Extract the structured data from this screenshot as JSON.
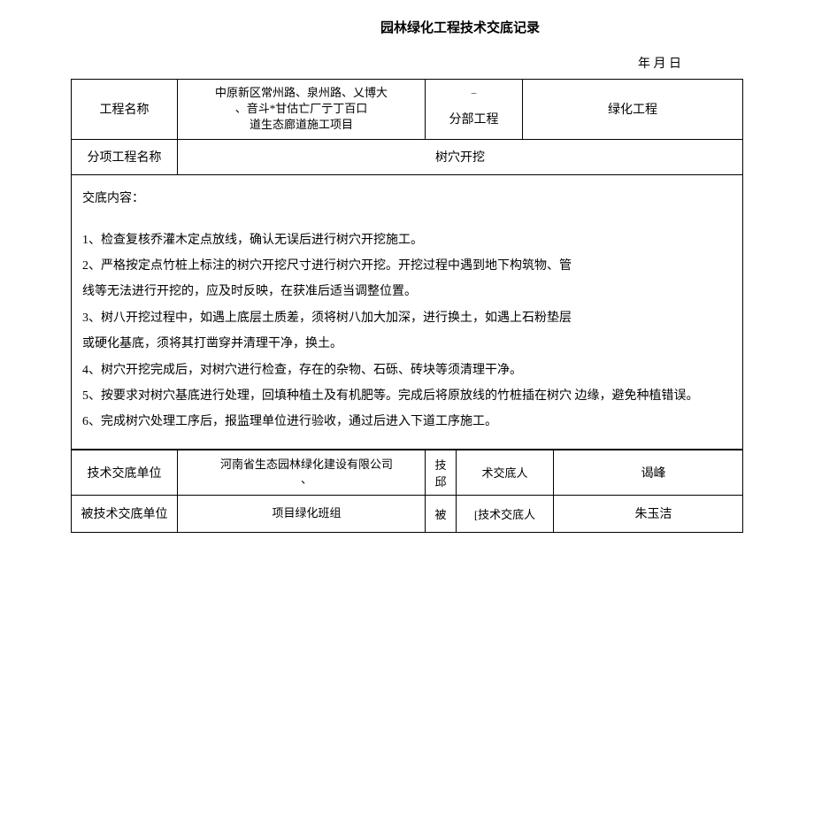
{
  "title": "园林绿化工程技术交底记录",
  "date_label": "年 月 日",
  "header": {
    "project_label": "工程名称",
    "project_value": "中原新区常州路、泉州路、乂博大\n、音斗*甘估亡厂亍丁百口\n道生态廊道施工项目",
    "section_mark": "_",
    "section_label": "分部工程",
    "section_value": "绿化工程",
    "subitem_label": "分项工程名称",
    "subitem_value": "树穴开挖"
  },
  "content": {
    "heading": "交底内容：",
    "lines": [
      "1、检查复核乔灌木定点放线，确认无误后进行树穴开挖施工。",
      "2、严格按定点竹桩上标注的树穴开挖尺寸进行树穴开挖。开挖过程中遇到地下构筑物、管",
      "线等无法进行开挖的，应及时反映，在获准后适当调整位置。",
      "3、树八开挖过程中，如遇上底层土质差，须将树八加大加深，进行换土，如遇上石粉垫层",
      "或硬化基底，须将其打凿穿并清理干净，换土。",
      "4、树穴开挖完成后，对树穴进行检查，存在的杂物、石砾、砖块等须清理干净。",
      "5、按要求对树穴基底进行处理，回填种植土及有机肥等。完成后将原放线的竹桩插在树穴 边缘，避免种植错误。",
      "6、完成树穴处理工序后，报监理单位进行验收，通过后进入下道工序施工。"
    ]
  },
  "footer": {
    "row1_label": "技术交底单位",
    "row1_company": "河南省生态园林绿化建设有限公司\n、",
    "row1_mid": "技\n邱",
    "row1_sublabel": "术交底人",
    "row1_name": "谒峰",
    "row2_label": "被技术交底单位",
    "row2_company": "项目绿化班组",
    "row2_mid": "被",
    "row2_sublabel": "[技术交底人",
    "row2_name": "朱玉洁"
  }
}
